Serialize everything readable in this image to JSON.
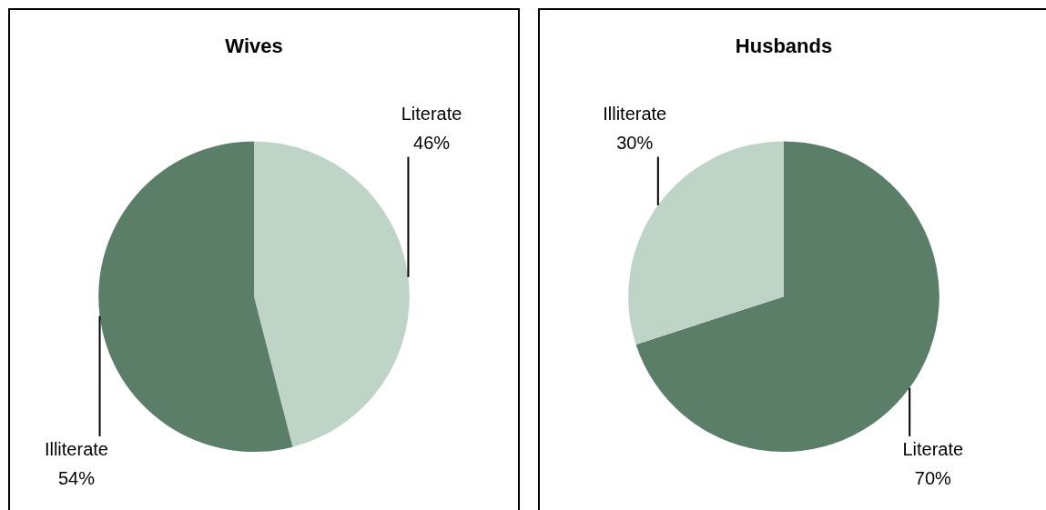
{
  "chart_data": [
    {
      "type": "pie",
      "title": "Wives",
      "categories": [
        "Literate",
        "Illiterate"
      ],
      "values": [
        46,
        54
      ],
      "value_labels": [
        "46%",
        "54%"
      ],
      "colors": [
        "#bdd4c6",
        "#5a7e68"
      ]
    },
    {
      "type": "pie",
      "title": "Husbands",
      "categories": [
        "Literate",
        "Illiterate"
      ],
      "values": [
        70,
        30
      ],
      "value_labels": [
        "70%",
        "30%"
      ],
      "colors": [
        "#5a7e68",
        "#bdd4c6"
      ]
    }
  ]
}
